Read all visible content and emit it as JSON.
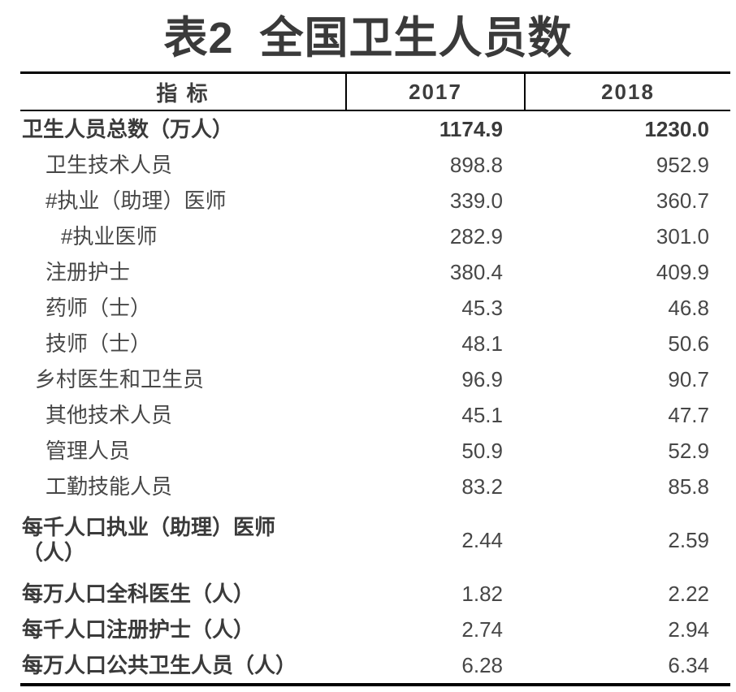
{
  "title": {
    "prefix": "表2",
    "text": "全国卫生人员数"
  },
  "table": {
    "columns": [
      "指 标",
      "2017",
      "2018"
    ],
    "rows": [
      {
        "label": "卫生人员总数（万人）",
        "indent": 0,
        "bold": true,
        "values_bold": true,
        "tall": false,
        "v2017": "1174.9",
        "v2018": "1230.0"
      },
      {
        "label": "卫生技术人员",
        "indent": 1,
        "bold": false,
        "values_bold": false,
        "tall": false,
        "v2017": "898.8",
        "v2018": "952.9"
      },
      {
        "label": "#执业（助理）医师",
        "indent": 1,
        "bold": false,
        "values_bold": false,
        "tall": false,
        "v2017": "339.0",
        "v2018": "360.7"
      },
      {
        "label": "#执业医师",
        "indent": 2,
        "bold": false,
        "values_bold": false,
        "tall": false,
        "v2017": "282.9",
        "v2018": "301.0"
      },
      {
        "label": "注册护士",
        "indent": 1,
        "bold": false,
        "values_bold": false,
        "tall": false,
        "v2017": "380.4",
        "v2018": "409.9"
      },
      {
        "label": "药师（士）",
        "indent": 1,
        "bold": false,
        "values_bold": false,
        "tall": false,
        "v2017": "45.3",
        "v2018": "46.8"
      },
      {
        "label": "技师（士）",
        "indent": 1,
        "bold": false,
        "values_bold": false,
        "tall": false,
        "v2017": "48.1",
        "v2018": "50.6"
      },
      {
        "label": "乡村医生和卫生员",
        "indent": 0.5,
        "bold": false,
        "values_bold": false,
        "tall": false,
        "v2017": "96.9",
        "v2018": "90.7"
      },
      {
        "label": "其他技术人员",
        "indent": 1,
        "bold": false,
        "values_bold": false,
        "tall": false,
        "v2017": "45.1",
        "v2018": "47.7"
      },
      {
        "label": "管理人员",
        "indent": 1,
        "bold": false,
        "values_bold": false,
        "tall": false,
        "v2017": "50.9",
        "v2018": "52.9"
      },
      {
        "label": "工勤技能人员",
        "indent": 1,
        "bold": false,
        "values_bold": false,
        "tall": false,
        "v2017": "83.2",
        "v2018": "85.8"
      },
      {
        "label": "每千人口执业（助理）医师\n（人）",
        "indent": 0,
        "bold": true,
        "values_bold": false,
        "tall": true,
        "v2017": "2.44",
        "v2018": "2.59"
      },
      {
        "label": "每万人口全科医生（人）",
        "indent": 0,
        "bold": true,
        "values_bold": false,
        "tall": false,
        "v2017": "1.82",
        "v2018": "2.22"
      },
      {
        "label": "每千人口注册护士（人）",
        "indent": 0,
        "bold": true,
        "values_bold": false,
        "tall": false,
        "v2017": "2.74",
        "v2018": "2.94"
      },
      {
        "label": "每万人口公共卫生人员（人）",
        "indent": 0,
        "bold": true,
        "values_bold": false,
        "tall": false,
        "v2017": "6.28",
        "v2018": "6.34"
      }
    ]
  },
  "colors": {
    "text": "#474747",
    "text_bold": "#3a3a3a",
    "border": "#000000",
    "background": "#ffffff"
  }
}
